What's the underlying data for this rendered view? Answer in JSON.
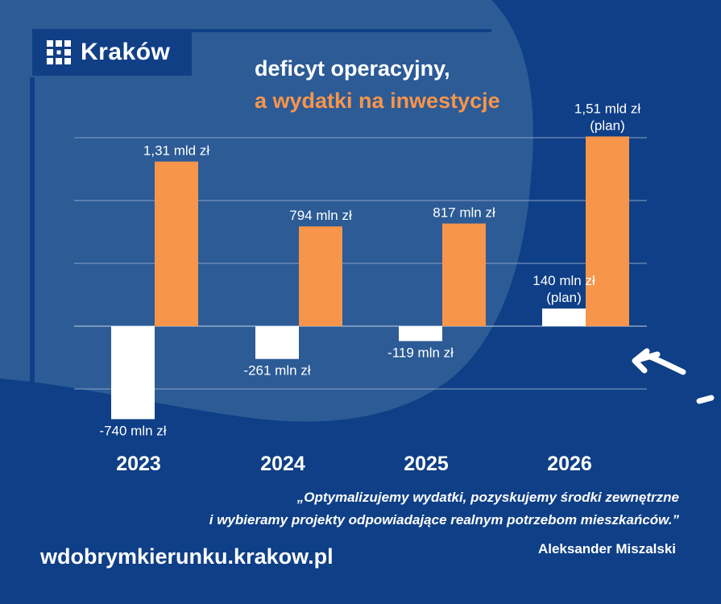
{
  "brand": {
    "name": "Kraków",
    "icon": "krakow-logo-icon"
  },
  "title": {
    "line1": "deficyt operacyjny,",
    "line2": "a wydatki na inwestycje"
  },
  "colors": {
    "background": "#0f3f86",
    "deficit": "#ffffff",
    "investment": "#f7954b",
    "highlight_title": "#f7954b"
  },
  "chart_data": {
    "type": "bar",
    "categories": [
      "2023",
      "2024",
      "2025",
      "2026"
    ],
    "ylim": [
      -800,
      1600
    ],
    "grid": true,
    "series": [
      {
        "values": [
          -740,
          -261,
          -119,
          140
        ],
        "labels": [
          [
            "-740 mln zł"
          ],
          [
            "-261 mln zł"
          ],
          [
            "-119 mln zł"
          ],
          [
            "140 mln zł",
            "(plan)"
          ]
        ]
      },
      {
        "values": [
          1310,
          794,
          817,
          1510
        ],
        "labels": [
          [
            "1,31 mld zł"
          ],
          [
            "794 mln zł"
          ],
          [
            "817 mln zł"
          ],
          [
            "1,51 mld zł",
            "(plan)"
          ]
        ]
      }
    ]
  },
  "quote": {
    "line1": "„Optymalizujemy wydatki, pozyskujemy środki zewnętrzne",
    "line2": "i wybieramy projekty odpowiadające realnym potrzebom mieszkańców.”",
    "author": "Aleksander Miszalski"
  },
  "website": "wdobrymkierunku.krakow.pl",
  "decorations": {
    "arrow_icon": "arrow-icon"
  }
}
